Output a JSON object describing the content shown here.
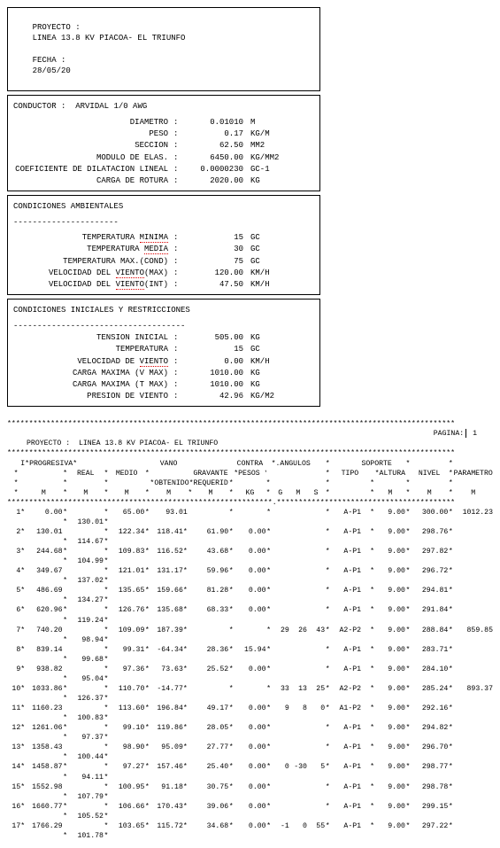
{
  "header": {
    "proyecto_label": "PROYECTO :",
    "proyecto": "LINEA 13.8 KV PIACOA- EL TRIUNFO",
    "fecha_label": "FECHA :",
    "fecha": "28/05/20"
  },
  "conductor": {
    "section_label": "CONDUCTOR :",
    "name": "ARVIDAL 1/0 AWG",
    "rows": [
      {
        "label": "DIAMETRO",
        "val": "0.01010",
        "unit": "M"
      },
      {
        "label": "PESO",
        "val": "0.17",
        "unit": "KG/M"
      },
      {
        "label": "SECCION",
        "val": "62.50",
        "unit": "MM2"
      },
      {
        "label": "MODULO DE ELAS.",
        "val": "6450.00",
        "unit": "KG/MM2"
      },
      {
        "label": "COEFICIENTE DE DILATACION LINEAL",
        "val": "0.0000230",
        "unit": "GC-1"
      },
      {
        "label": "CARGA DE ROTURA",
        "val": "2020.00",
        "unit": "KG"
      }
    ]
  },
  "ambient": {
    "title": "CONDICIONES AMBIENTALES",
    "rows": [
      {
        "label": "TEMPERATURA",
        "ul": "MINIMA",
        "suf": "",
        "val": "15",
        "unit": "GC"
      },
      {
        "label": "TEMPERATURA",
        "ul": "MEDIA",
        "suf": "",
        "val": "30",
        "unit": "GC"
      },
      {
        "label": "TEMPERATURA MAX.",
        "ul": "",
        "suf": "(COND)",
        "val": "75",
        "unit": "GC"
      },
      {
        "label": "VELOCIDAD DEL",
        "ul": "VIENTO",
        "suf": "(MAX)",
        "val": "120.00",
        "unit": "KM/H"
      },
      {
        "label": "VELOCIDAD DEL",
        "ul": "VIENTO",
        "suf": "(INT)",
        "val": "47.50",
        "unit": "KM/H"
      }
    ]
  },
  "initial": {
    "title": "CONDICIONES INICIALES Y RESTRICCIONES",
    "rows": [
      {
        "label": "TENSION INICIAL",
        "ul": "",
        "suf": "",
        "val": "505.00",
        "unit": "KG"
      },
      {
        "label": "TEMPERATURA",
        "ul": "",
        "suf": "",
        "val": "15",
        "unit": "GC"
      },
      {
        "label": "VELOCIDAD DE",
        "ul": "VIENTO",
        "suf": "",
        "val": "0.00",
        "unit": "KM/H"
      },
      {
        "label": "CARGA MAXIMA (V MAX)",
        "ul": "",
        "suf": "",
        "val": "1010.00",
        "unit": "KG"
      },
      {
        "label": "CARGA MAXIMA (T MAX)",
        "ul": "",
        "suf": "",
        "val": "1010.00",
        "unit": "KG"
      },
      {
        "label": "PRESION DE VIENTO",
        "ul": "",
        "suf": "",
        "val": "42.96",
        "unit": "KG/M2"
      }
    ]
  },
  "page2": {
    "pagina_label": "PAGINA:",
    "pagina": "1",
    "proyecto_label": "PROYECTO  :",
    "proyecto": "LINEA 13.8 KV PIACOA- EL TRIUNFO",
    "col_headers": {
      "i": "I",
      "prog": "*PROGRESIVA*",
      "vano": "VANO",
      "contra": "CONTRA",
      "angulos": "*.ANGULOS",
      "soporte": "SOPORTE",
      "real": "REAL",
      "medio": "MEDIO",
      "grav": "GRAVANTE",
      "pesos": "*PESOS *.",
      "tipo": "TIPO",
      "altura": "*ALTURA *",
      "nivel": "NIVEL",
      "param": "PARAMETRO",
      "obt": "*OBTENIDO*REQUERIDO*",
      "unit_m": "M",
      "unit_kg": "KG",
      "g": "G",
      "ms": "M",
      "s": "S"
    }
  },
  "rows": [
    {
      "i": "1*",
      "prog": "0.00",
      "st": "*",
      "real": "",
      "med": "65.00",
      "vano": "93.01",
      "grav": "",
      "cp": "",
      "g": "",
      "m": "",
      "s": "",
      "t1": "A",
      "t2": "-P1",
      "alt": "9.00",
      "niv": "300.00",
      "par": "1012.23",
      "real2": "130.01"
    },
    {
      "i": "2*",
      "prog": "130.01",
      "st": "",
      "real": "",
      "med": "122.34",
      "vano": "118.41*",
      "grav": "61.90",
      "cp": "0.00",
      "g": "",
      "m": "",
      "s": "",
      "t1": "A",
      "t2": "-P1",
      "alt": "9.00",
      "niv": "298.76",
      "par": "",
      "real2": "114.67"
    },
    {
      "i": "3*",
      "prog": "244.68",
      "st": "*",
      "real": "",
      "med": "109.83",
      "vano": "116.52*",
      "grav": "43.68",
      "cp": "0.00",
      "g": "",
      "m": "",
      "s": "",
      "t1": "A",
      "t2": "-P1",
      "alt": "9.00",
      "niv": "297.82",
      "par": "",
      "real2": "104.99"
    },
    {
      "i": "4*",
      "prog": "349.67",
      "st": "",
      "real": "",
      "med": "121.01",
      "vano": "131.17*",
      "grav": "59.96",
      "cp": "0.00",
      "g": "",
      "m": "",
      "s": "",
      "t1": "A",
      "t2": "-P1",
      "alt": "9.00",
      "niv": "296.72",
      "par": "",
      "real2": "137.02"
    },
    {
      "i": "5*",
      "prog": "486.69",
      "st": "",
      "real": "",
      "med": "135.65",
      "vano": "159.66*",
      "grav": "81.28",
      "cp": "0.00",
      "g": "",
      "m": "",
      "s": "",
      "t1": "A",
      "t2": "-P1",
      "alt": "9.00",
      "niv": "294.81",
      "par": "",
      "real2": "134.27"
    },
    {
      "i": "6*",
      "prog": "620.96",
      "st": "*",
      "real": "",
      "med": "126.76",
      "vano": "135.68*",
      "grav": "68.33",
      "cp": "0.00",
      "g": "",
      "m": "",
      "s": "",
      "t1": "A",
      "t2": "-P1",
      "alt": "9.00",
      "niv": "291.84",
      "par": "",
      "real2": "119.24"
    },
    {
      "i": "7*",
      "prog": "740.20",
      "st": "",
      "real": "",
      "med": "109.09",
      "vano": "187.39*",
      "grav": "",
      "cp": "",
      "g": "29",
      "m": "26",
      "s": "43",
      "t1": "A2",
      "t2": "-P2",
      "alt": "9.00",
      "niv": "288.84",
      "par": "859.85",
      "real2": "98.94"
    },
    {
      "i": "8*",
      "prog": "839.14",
      "st": "",
      "real": "",
      "med": "99.31",
      "vano": "-64.34*",
      "grav": "28.36",
      "cp": "15.94",
      "g": "",
      "m": "",
      "s": "",
      "t1": "A",
      "t2": "-P1",
      "alt": "9.00",
      "niv": "283.71",
      "par": "",
      "real2": "99.68"
    },
    {
      "i": "9*",
      "prog": "938.82",
      "st": "",
      "real": "",
      "med": "97.36",
      "vano": "73.63*",
      "grav": "25.52",
      "cp": "0.00",
      "g": "",
      "m": "",
      "s": "",
      "t1": "A",
      "t2": "-P1",
      "alt": "9.00",
      "niv": "284.10",
      "par": "",
      "real2": "95.04"
    },
    {
      "i": "10*",
      "prog": "1033.86",
      "st": "*",
      "real": "",
      "med": "110.70",
      "vano": "-14.77*",
      "grav": "",
      "cp": "",
      "g": "33",
      "m": "13",
      "s": "25",
      "t1": "A2",
      "t2": "-P2",
      "alt": "9.00",
      "niv": "285.24",
      "par": "893.37",
      "real2": "126.37"
    },
    {
      "i": "11*",
      "prog": "1160.23",
      "st": "",
      "real": "",
      "med": "113.60",
      "vano": "196.84*",
      "grav": "49.17",
      "cp": "0.00",
      "g": "9",
      "m": "8",
      "s": "0",
      "t1": "A1",
      "t2": "-P2",
      "alt": "9.00",
      "niv": "292.16",
      "par": "",
      "real2": "100.83"
    },
    {
      "i": "12*",
      "prog": "1261.06",
      "st": "*",
      "real": "",
      "med": "99.10",
      "vano": "119.86*",
      "grav": "28.05",
      "cp": "0.00",
      "g": "",
      "m": "",
      "s": "",
      "t1": "A",
      "t2": "-P1",
      "alt": "9.00",
      "niv": "294.82",
      "par": "",
      "real2": "97.37"
    },
    {
      "i": "13*",
      "prog": "1358.43",
      "st": "",
      "real": "",
      "med": "98.90",
      "vano": "95.09*",
      "grav": "27.77",
      "cp": "0.00",
      "g": "",
      "m": "",
      "s": "",
      "t1": "A",
      "t2": "-P1",
      "alt": "9.00",
      "niv": "296.70",
      "par": "",
      "real2": "100.44"
    },
    {
      "i": "14*",
      "prog": "1458.87",
      "st": "*",
      "real": "",
      "med": "97.27",
      "vano": "157.46*",
      "grav": "25.40",
      "cp": "0.00",
      "g": "0",
      "m": "-30",
      "s": "5",
      "t1": "A",
      "t2": "-P1",
      "alt": "9.00",
      "niv": "298.77",
      "par": "",
      "real2": "94.11"
    },
    {
      "i": "15*",
      "prog": "1552.98",
      "st": "",
      "real": "",
      "med": "100.95",
      "vano": "91.18*",
      "grav": "30.75",
      "cp": "0.00",
      "g": "",
      "m": "",
      "s": "",
      "t1": "A",
      "t2": "-P1",
      "alt": "9.00",
      "niv": "298.78",
      "par": "",
      "real2": "107.79"
    },
    {
      "i": "16*",
      "prog": "1660.77",
      "st": "*",
      "real": "",
      "med": "106.66",
      "vano": "170.43*",
      "grav": "39.06",
      "cp": "0.00",
      "g": "",
      "m": "",
      "s": "",
      "t1": "A",
      "t2": "-P1",
      "alt": "9.00",
      "niv": "299.15",
      "par": "",
      "real2": "105.52"
    },
    {
      "i": "17*",
      "prog": "1766.29",
      "st": "",
      "real": "",
      "med": "103.65",
      "vano": "115.72*",
      "grav": "34.68",
      "cp": "0.00",
      "g": "-1",
      "m": "0",
      "s": "55",
      "t1": "A",
      "t2": "-P1",
      "alt": "9.00",
      "niv": "297.22",
      "par": "",
      "real2": "101.78"
    }
  ]
}
